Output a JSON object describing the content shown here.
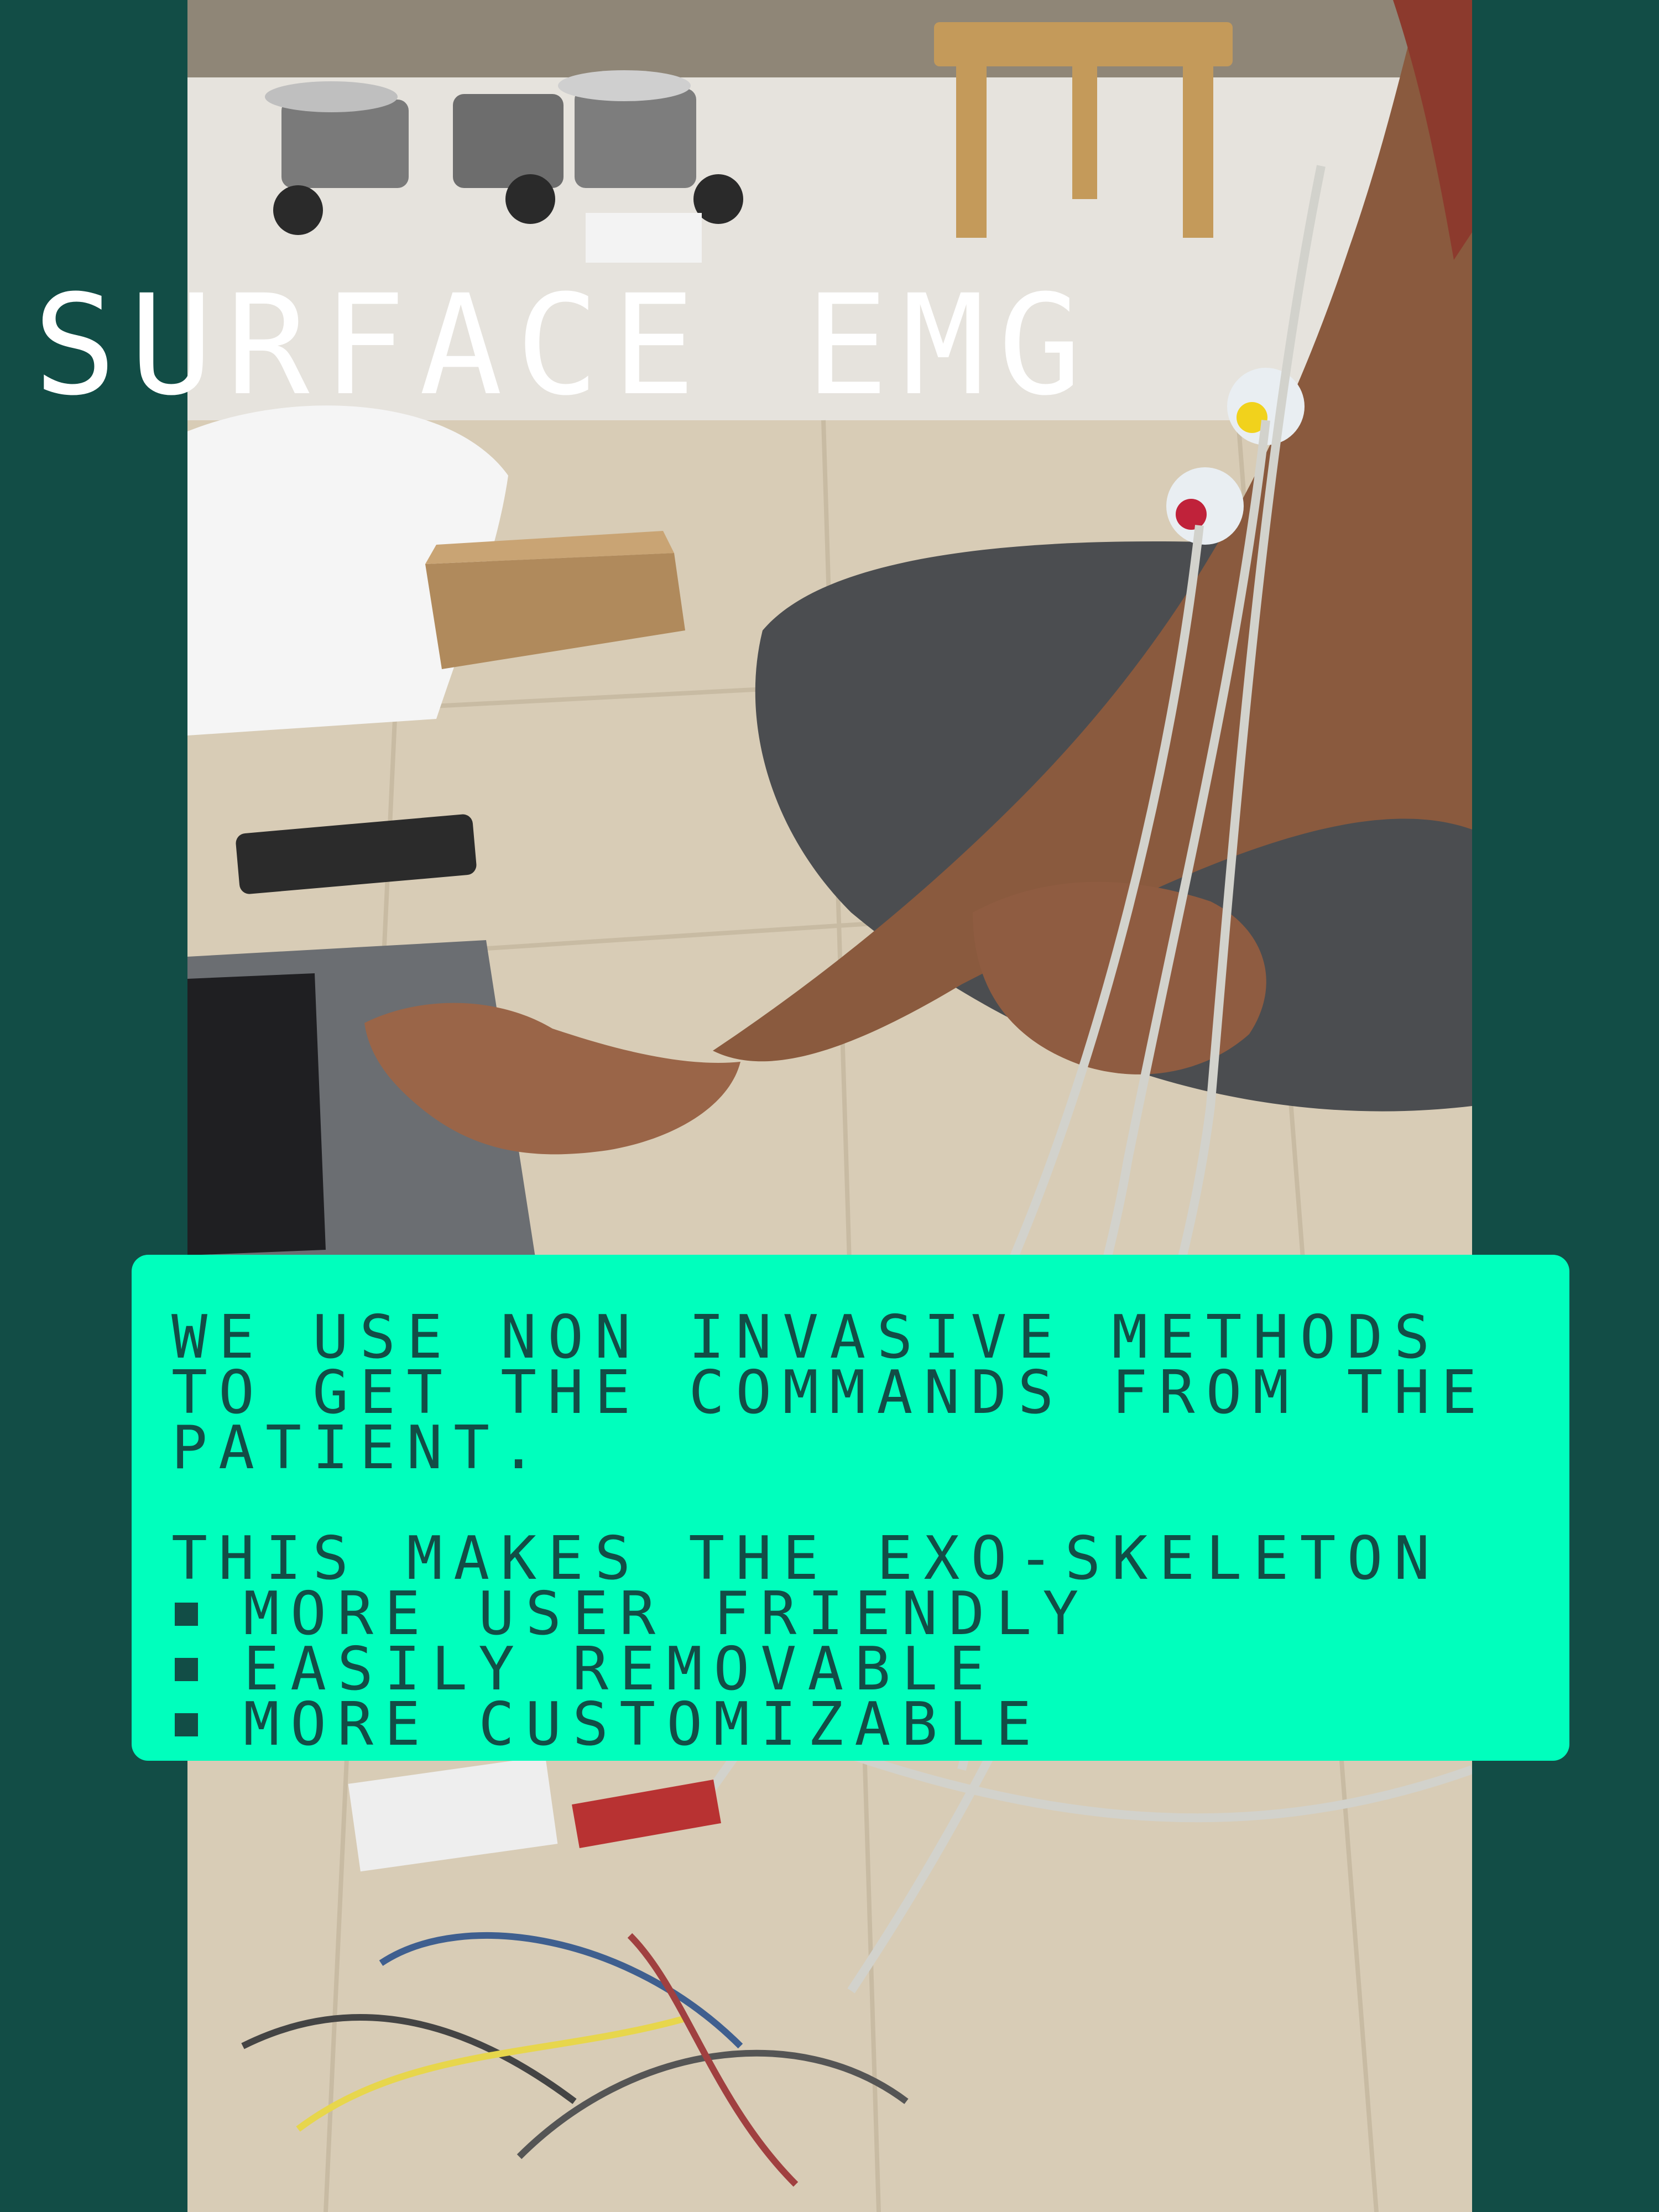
{
  "title": "SURFACE EMG",
  "panel": {
    "paragraph": "WE USE NON INVASIVE METHODS TO GET THE COMMANDS FROM THE PATIENT.",
    "lead": "THIS MAKES THE EXO-SKELETON",
    "bullets": [
      "MORE USER FRIENDLY",
      "EASILY REMOVABLE",
      "MORE CUSTOMIZABLE"
    ]
  },
  "photo": {
    "subject": "photo-emg-setup"
  },
  "colors": {
    "background": "#124d46",
    "panel": "#00ffbd",
    "panel_text": "#124d46",
    "title_text": "#ffffff"
  }
}
